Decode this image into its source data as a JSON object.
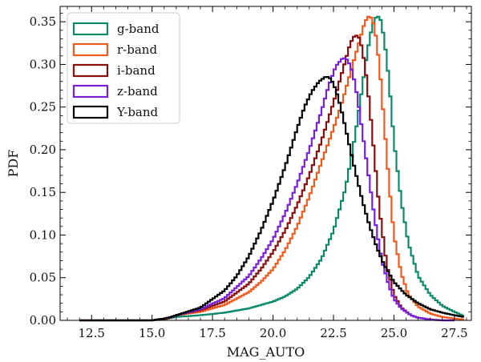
{
  "chart_data": {
    "type": "line",
    "xlabel": "MAG_AUTO",
    "ylabel": "PDF",
    "xlim": [
      11.2,
      28.2
    ],
    "ylim": [
      0.0,
      0.368
    ],
    "xticks": [
      12.5,
      15.0,
      17.5,
      20.0,
      22.5,
      25.0,
      27.5
    ],
    "xtick_labels": [
      "12.5",
      "15.0",
      "17.5",
      "20.0",
      "22.5",
      "25.0",
      "27.5"
    ],
    "yticks": [
      0.0,
      0.05,
      0.1,
      0.15,
      0.2,
      0.25,
      0.3,
      0.35
    ],
    "ytick_labels": [
      "0.00",
      "0.05",
      "0.10",
      "0.15",
      "0.20",
      "0.25",
      "0.30",
      "0.35"
    ],
    "grid": false,
    "legend_position": "top-left",
    "step_histogram": true,
    "series": [
      {
        "name": "g-band",
        "color": "#0b8a6a",
        "x": [
          12.0,
          15.0,
          15.5,
          15.8,
          16.0,
          17.0,
          18.0,
          19.0,
          20.0,
          20.5,
          21.0,
          21.5,
          22.0,
          22.5,
          23.0,
          23.3,
          23.6,
          23.9,
          24.1,
          24.3,
          24.45,
          24.6,
          24.8,
          25.0,
          25.3,
          25.6,
          26.0,
          26.5,
          27.0,
          27.5,
          27.9
        ],
        "y": [
          0.0,
          0.0,
          0.001,
          0.003,
          0.004,
          0.006,
          0.009,
          0.014,
          0.022,
          0.028,
          0.037,
          0.051,
          0.072,
          0.105,
          0.155,
          0.2,
          0.255,
          0.315,
          0.345,
          0.358,
          0.352,
          0.33,
          0.28,
          0.21,
          0.14,
          0.09,
          0.052,
          0.03,
          0.017,
          0.01,
          0.005
        ]
      },
      {
        "name": "r-band",
        "color": "#f25a1d",
        "x": [
          12.0,
          15.0,
          15.5,
          15.8,
          16.0,
          17.0,
          18.0,
          19.0,
          19.5,
          20.0,
          20.5,
          21.0,
          21.5,
          22.0,
          22.5,
          22.8,
          23.0,
          23.3,
          23.6,
          23.8,
          24.0,
          24.2,
          24.4,
          24.6,
          24.8,
          25.0,
          25.3,
          25.6,
          26.0,
          26.5,
          27.0,
          27.5,
          27.9
        ],
        "y": [
          0.0,
          0.0,
          0.001,
          0.004,
          0.006,
          0.01,
          0.018,
          0.033,
          0.045,
          0.06,
          0.082,
          0.11,
          0.145,
          0.185,
          0.225,
          0.25,
          0.27,
          0.3,
          0.33,
          0.35,
          0.358,
          0.345,
          0.3,
          0.23,
          0.16,
          0.1,
          0.055,
          0.03,
          0.016,
          0.008,
          0.004,
          0.002,
          0.001
        ]
      },
      {
        "name": "i-band",
        "color": "#8b0e0e",
        "x": [
          12.0,
          15.0,
          15.5,
          15.8,
          16.0,
          17.0,
          18.0,
          19.0,
          19.5,
          20.0,
          20.5,
          21.0,
          21.5,
          22.0,
          22.5,
          22.8,
          23.0,
          23.2,
          23.4,
          23.6,
          23.8,
          24.0,
          24.2,
          24.4,
          24.7,
          25.0,
          25.3,
          25.7,
          26.0,
          26.5,
          27.0,
          27.5
        ],
        "y": [
          0.0,
          0.0,
          0.002,
          0.004,
          0.006,
          0.012,
          0.022,
          0.043,
          0.06,
          0.08,
          0.105,
          0.135,
          0.17,
          0.21,
          0.255,
          0.285,
          0.305,
          0.325,
          0.335,
          0.33,
          0.3,
          0.25,
          0.19,
          0.13,
          0.065,
          0.03,
          0.015,
          0.006,
          0.003,
          0.001,
          0.0,
          0.0
        ]
      },
      {
        "name": "z-band",
        "color": "#7a1fd9",
        "x": [
          12.0,
          15.0,
          15.5,
          15.8,
          16.0,
          17.0,
          18.0,
          19.0,
          19.5,
          20.0,
          20.5,
          21.0,
          21.5,
          22.0,
          22.3,
          22.6,
          22.9,
          23.1,
          23.3,
          23.5,
          23.7,
          23.9,
          24.2,
          24.5,
          24.8,
          25.0,
          25.3,
          25.7,
          26.0,
          26.5,
          27.0,
          27.5
        ],
        "y": [
          0.0,
          0.0,
          0.002,
          0.004,
          0.006,
          0.013,
          0.026,
          0.052,
          0.072,
          0.095,
          0.125,
          0.16,
          0.2,
          0.245,
          0.275,
          0.298,
          0.308,
          0.305,
          0.29,
          0.26,
          0.22,
          0.18,
          0.12,
          0.07,
          0.04,
          0.025,
          0.014,
          0.006,
          0.003,
          0.001,
          0.0,
          0.0
        ]
      },
      {
        "name": "Y-band",
        "color": "#000000",
        "x": [
          12.0,
          15.0,
          15.5,
          15.8,
          16.0,
          17.0,
          18.0,
          18.5,
          19.0,
          19.5,
          20.0,
          20.5,
          21.0,
          21.3,
          21.6,
          21.9,
          22.2,
          22.4,
          22.6,
          22.8,
          23.0,
          23.2,
          23.4,
          23.7,
          24.0,
          24.3,
          24.6,
          25.0,
          25.5,
          26.0,
          26.5,
          27.0,
          27.5,
          27.9
        ],
        "y": [
          0.0,
          0.0,
          0.002,
          0.004,
          0.006,
          0.015,
          0.035,
          0.052,
          0.075,
          0.105,
          0.14,
          0.18,
          0.225,
          0.25,
          0.268,
          0.28,
          0.286,
          0.283,
          0.27,
          0.25,
          0.225,
          0.2,
          0.175,
          0.14,
          0.11,
          0.085,
          0.065,
          0.045,
          0.03,
          0.02,
          0.013,
          0.009,
          0.006,
          0.004
        ]
      }
    ]
  }
}
